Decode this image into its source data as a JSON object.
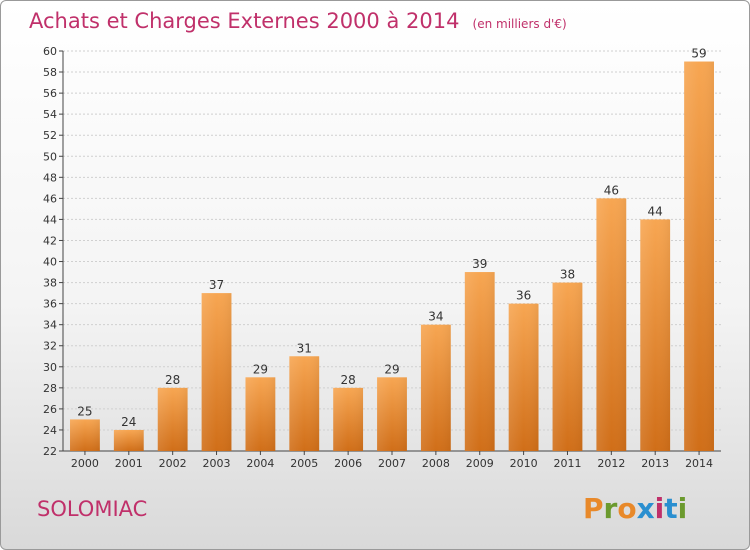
{
  "chart_data": {
    "type": "bar",
    "title": "Achats et Charges Externes 2000 à 2014",
    "subtitle": "(en milliers d'€)",
    "categories": [
      "2000",
      "2001",
      "2002",
      "2003",
      "2004",
      "2005",
      "2006",
      "2007",
      "2008",
      "2009",
      "2010",
      "2011",
      "2012",
      "2013",
      "2014"
    ],
    "values": [
      25,
      24,
      28,
      37,
      29,
      31,
      28,
      29,
      34,
      39,
      36,
      38,
      46,
      44,
      59
    ],
    "ylim": [
      22,
      60
    ],
    "yticks": [
      22,
      24,
      26,
      28,
      30,
      32,
      34,
      36,
      38,
      40,
      42,
      44,
      46,
      48,
      50,
      52,
      54,
      56,
      58,
      60
    ],
    "grid": true,
    "bar_color": "#f5a04a",
    "bar_color_dark": "#d06e18"
  },
  "commune": "SOLOMIAC",
  "logo": {
    "letters": [
      "P",
      "r",
      "o",
      "x",
      "i",
      "t",
      "i"
    ],
    "colors": [
      "#e8892a",
      "#6b9a2e",
      "#e8892a",
      "#2a8fd0",
      "#c0306a",
      "#2a8fd0",
      "#6b9a2e"
    ]
  }
}
